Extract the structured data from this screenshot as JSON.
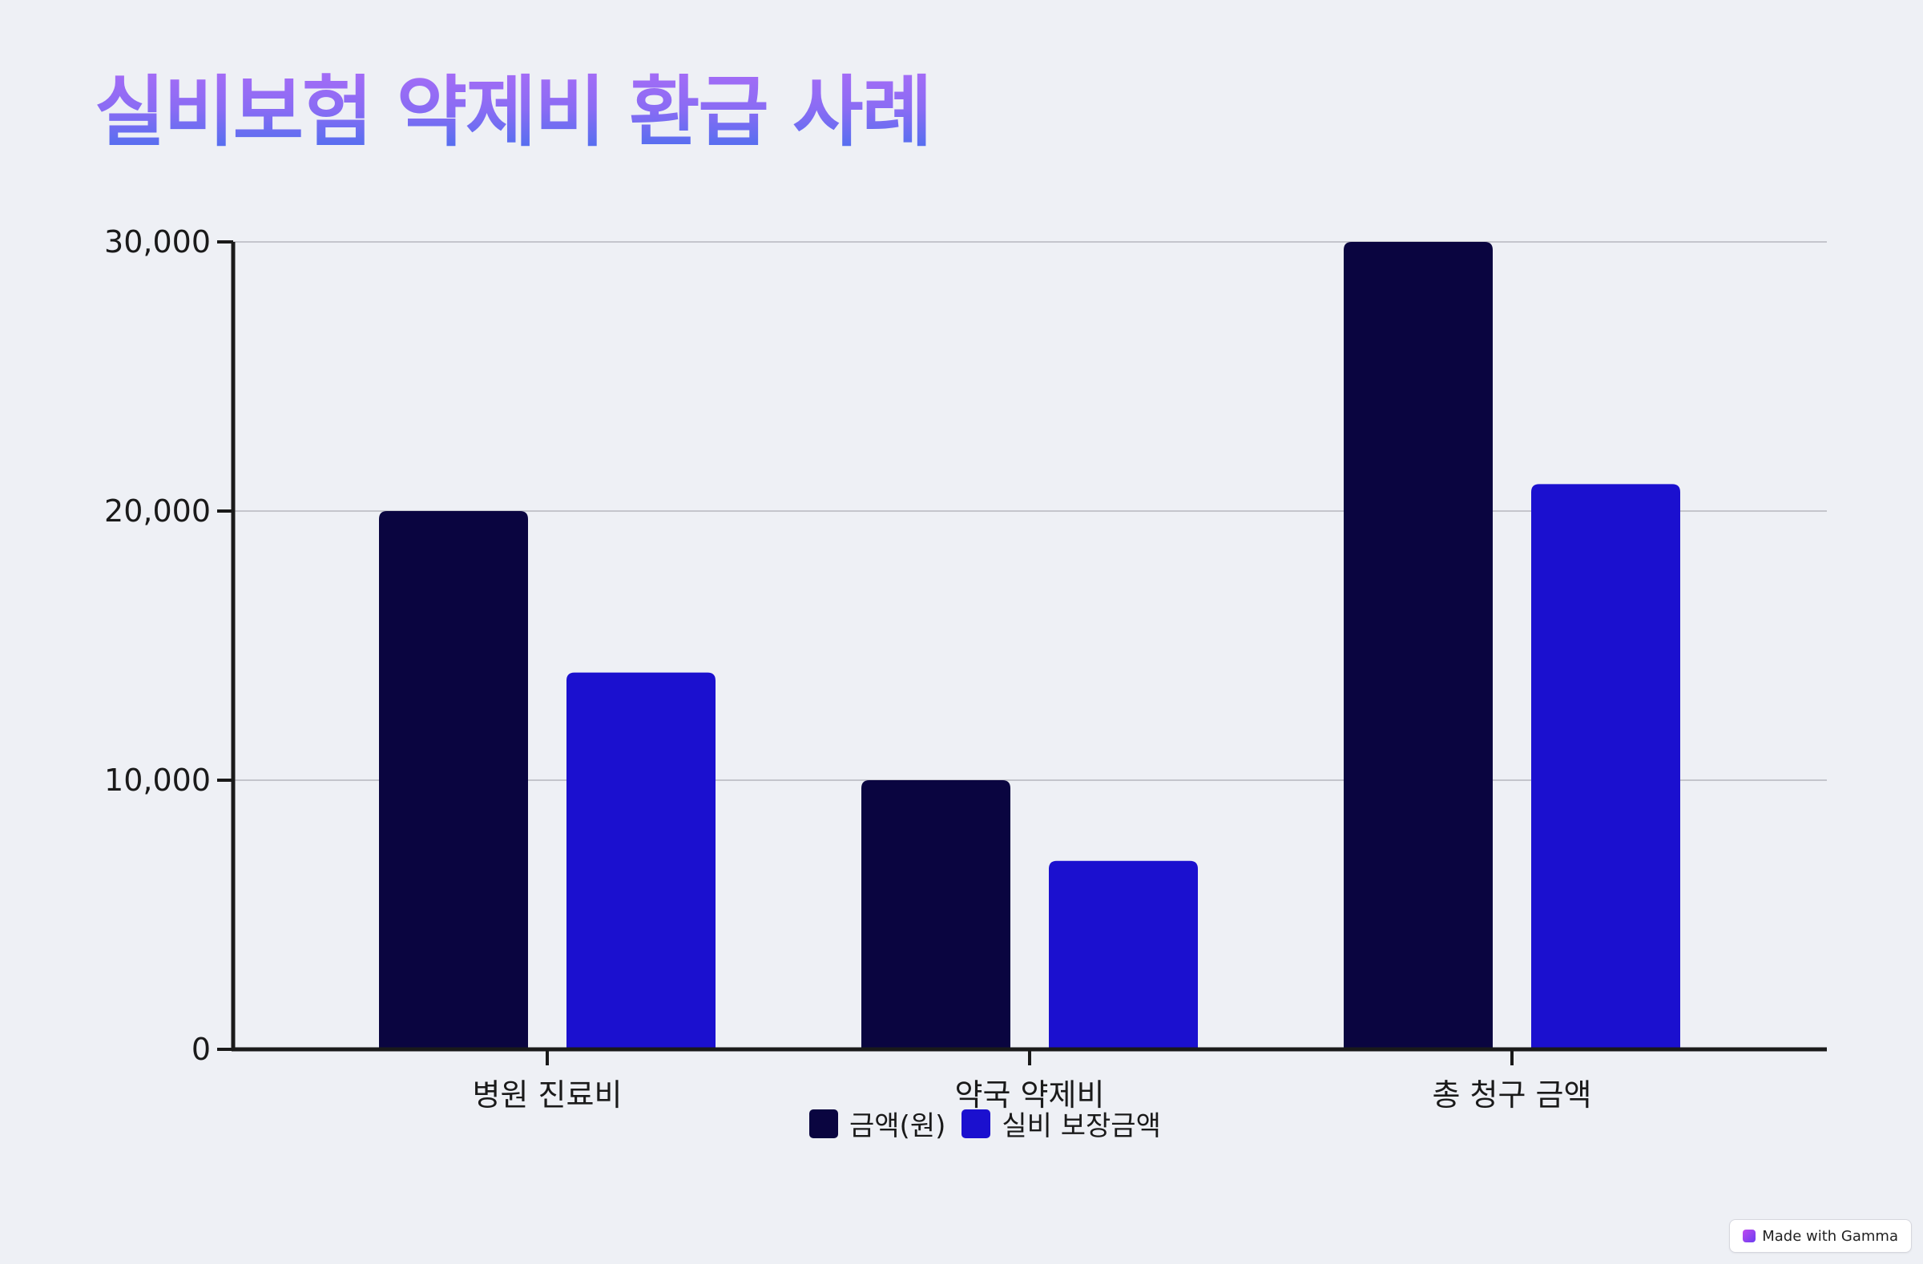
{
  "page": {
    "title": "실비보험 약제비 환급 사례"
  },
  "chart_data": {
    "type": "bar",
    "categories": [
      "병원 진료비",
      "약국 약제비",
      "총 청구 금액"
    ],
    "series": [
      {
        "name": "금액(원)",
        "values": [
          20000,
          10000,
          30000
        ],
        "color": "#0a0540"
      },
      {
        "name": "실비 보장금액",
        "values": [
          14000,
          7000,
          21000
        ],
        "color": "#1b10cf"
      }
    ],
    "yticks": [
      0,
      10000,
      20000,
      30000
    ],
    "ytick_labels": [
      "0",
      "10,000",
      "20,000",
      "30,000"
    ],
    "ylim": [
      0,
      30000
    ],
    "grid": true,
    "legend_position": "bottom-center"
  },
  "badge": {
    "label": "Made with Gamma"
  }
}
